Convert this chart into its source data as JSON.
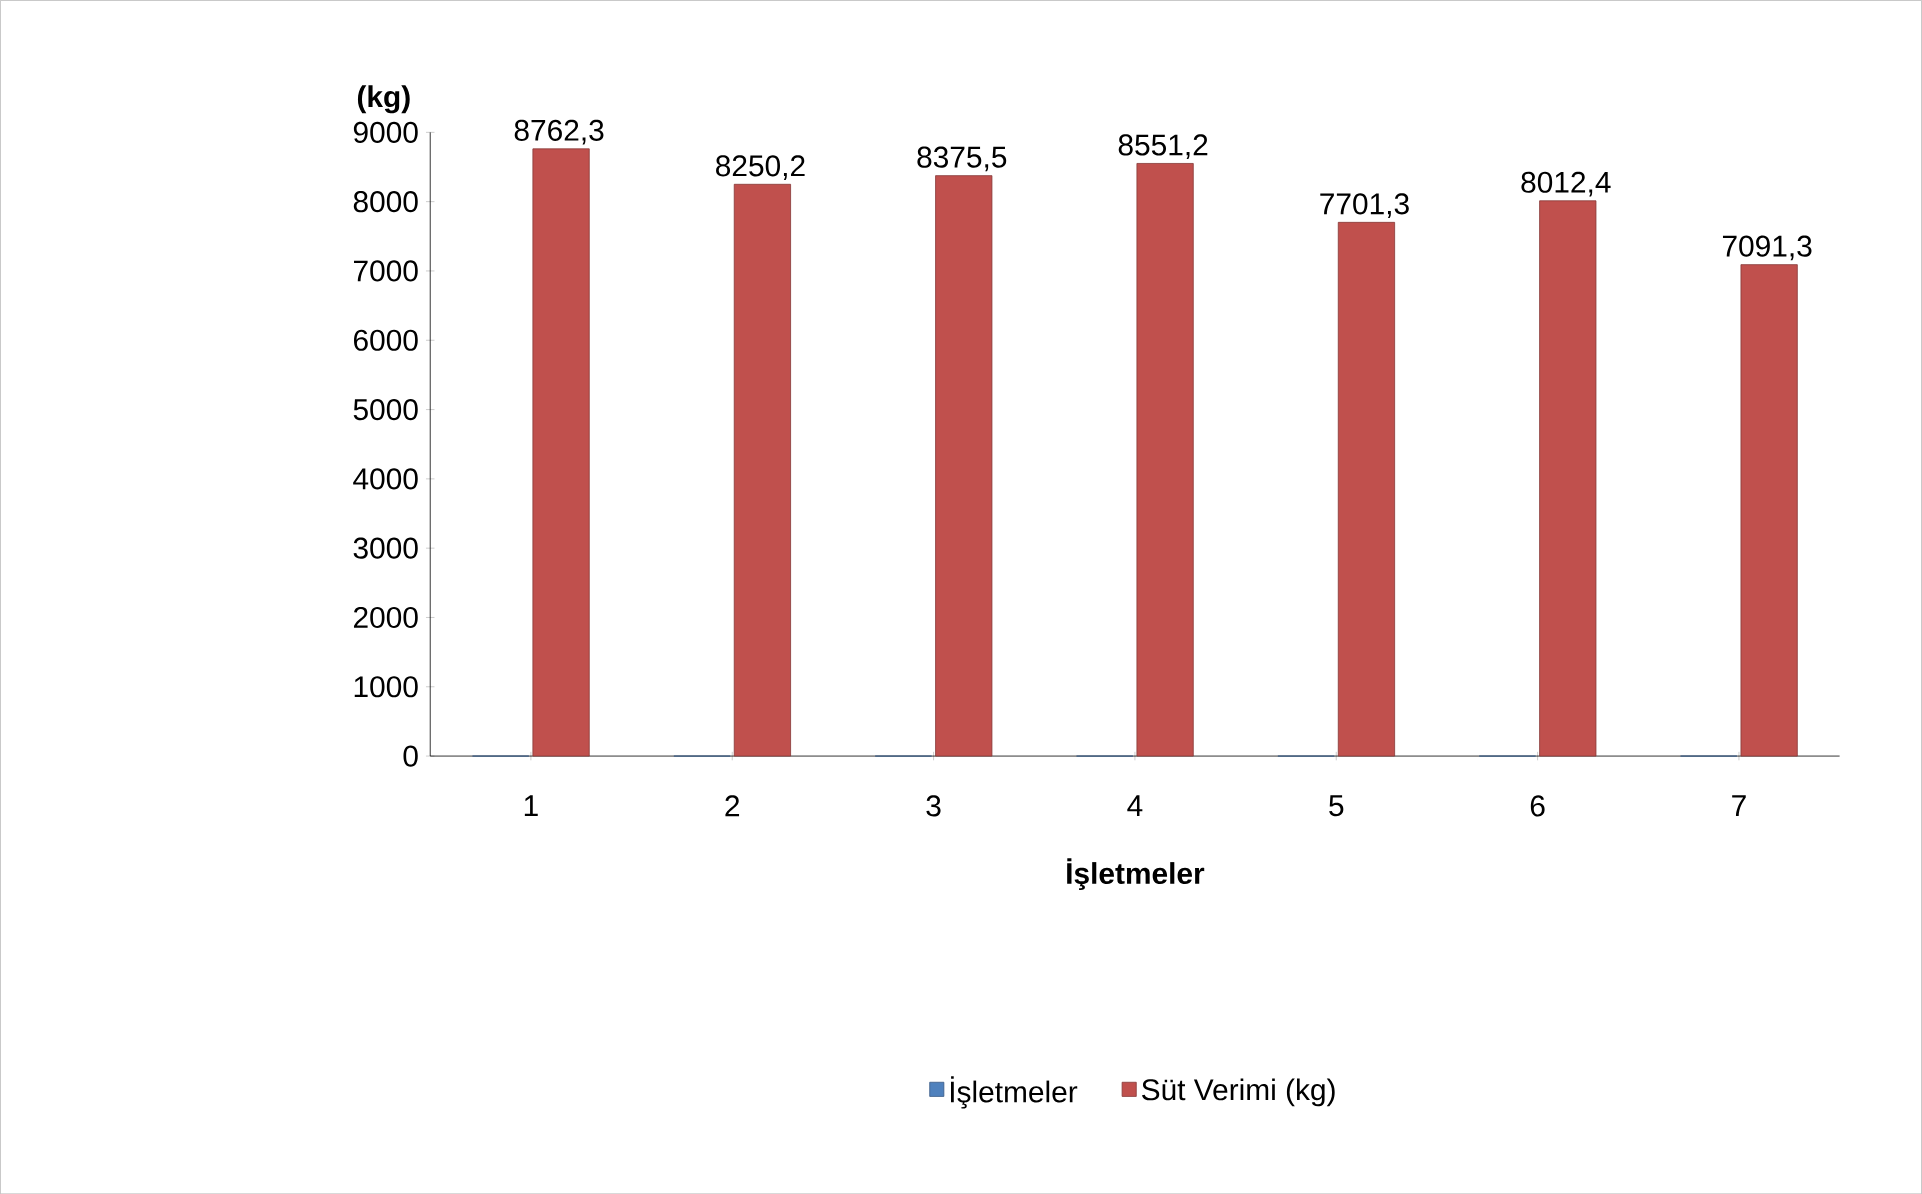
{
  "chart_data": {
    "type": "bar",
    "xlabel": "İşletmeler",
    "ylabel": "(kg)",
    "categories": [
      "1",
      "2",
      "3",
      "4",
      "5",
      "6",
      "7"
    ],
    "series": [
      {
        "name": "İşletmeler",
        "color": "#4f81bd",
        "values": [
          0,
          0,
          0,
          0,
          0,
          0,
          0
        ]
      },
      {
        "name": "Süt Verimi (kg)",
        "color": "#c0504d",
        "values": [
          8762.3,
          8250.2,
          8375.5,
          8551.2,
          7701.3,
          8012.4,
          7091.3
        ],
        "value_labels": [
          "8762,3",
          "8250,2",
          "8375,5",
          "8551,2",
          "7701,3",
          "8012,4",
          "7091,3"
        ]
      }
    ],
    "ylim": [
      0,
      9000
    ],
    "yticks": [
      0,
      1000,
      2000,
      3000,
      4000,
      5000,
      6000,
      7000,
      8000,
      9000
    ],
    "grid": false,
    "legend": "bottom"
  }
}
